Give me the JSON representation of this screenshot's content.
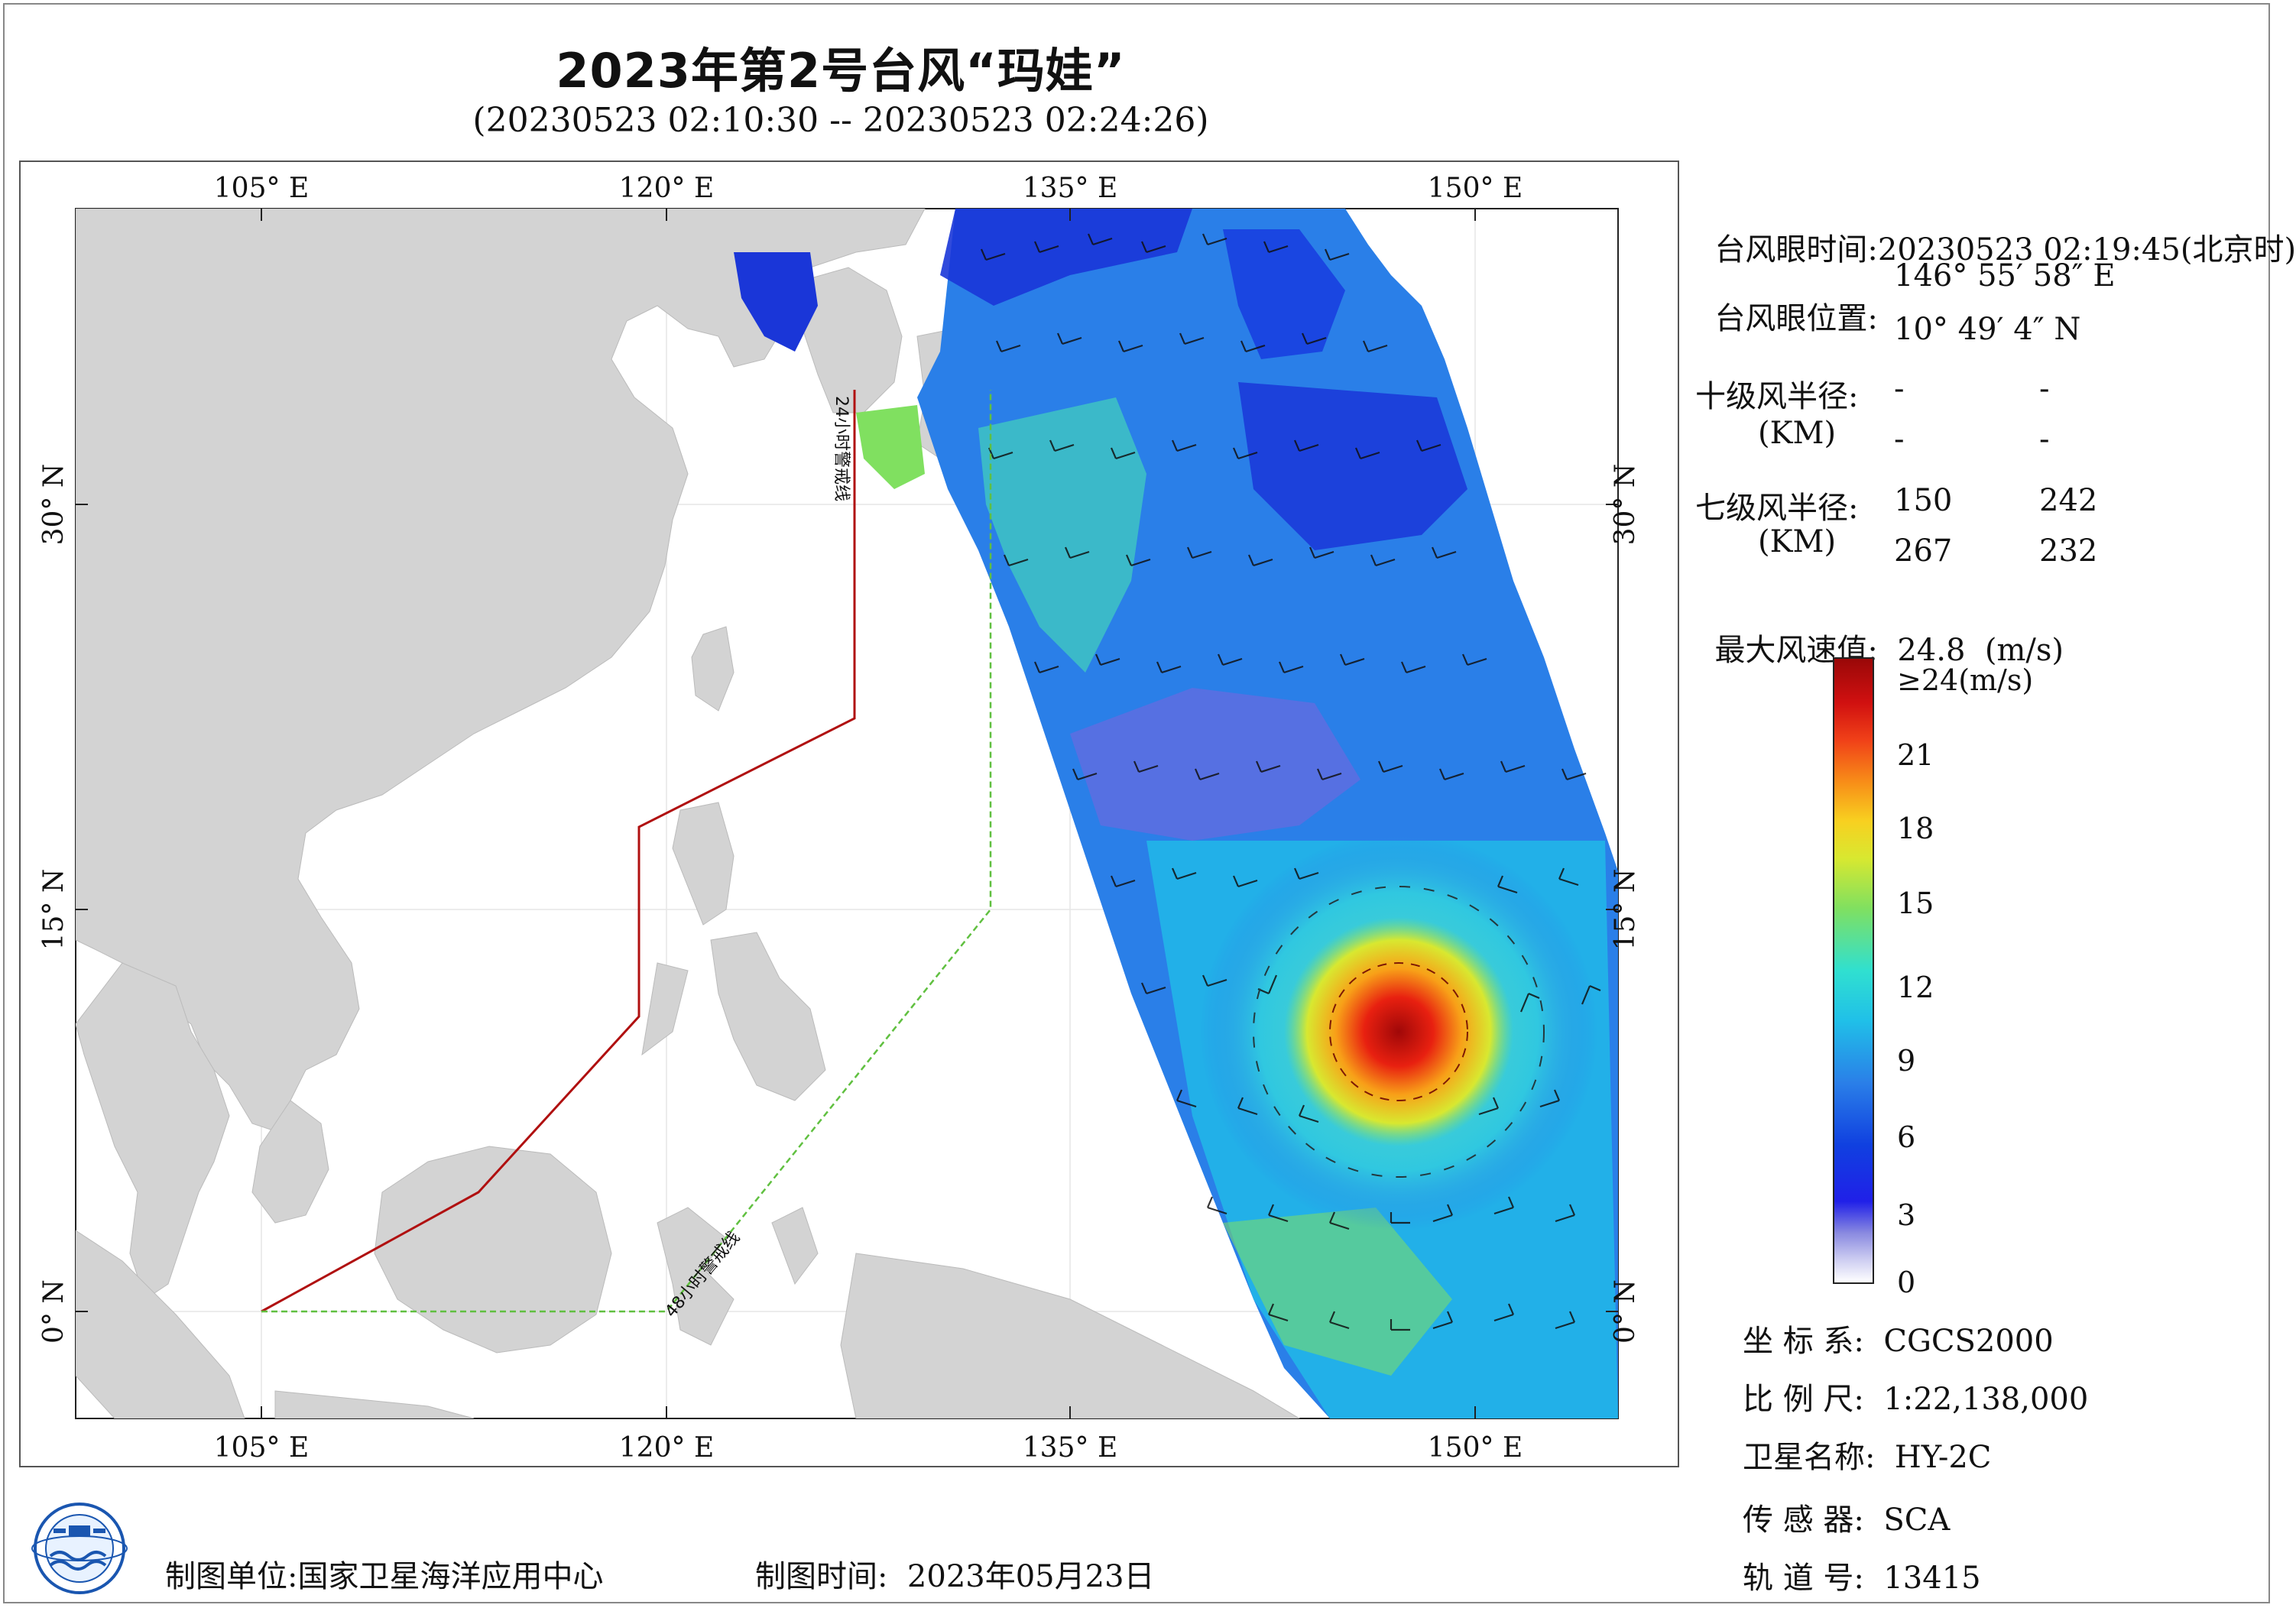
{
  "title": "2023年第2号台风“玛娃”",
  "subtitle": "(20230523 02:10:30 -- 20230523 02:24:26)",
  "map": {
    "lon_ticks": [
      "105° E",
      "120° E",
      "135° E",
      "150° E"
    ],
    "lat_ticks": [
      "30° N",
      "15° N",
      "0° N"
    ],
    "warning_24h_label": "24小时警戒线",
    "warning_48h_label": "48小时警戒线",
    "colors": {
      "land": "#d3d3d3",
      "sea": "#ffffff",
      "warning_24h": "#b01010",
      "warning_48h": "#60c040"
    }
  },
  "info": {
    "eye_time_label": "台风眼时间:",
    "eye_time_value": "20230523 02:19:45(北京时)",
    "eye_pos_label": "台风眼位置:",
    "eye_lon": "146° 55′ 58″ E",
    "eye_lat": "10° 49′ 4″ N",
    "r10_label": "十级风半径:",
    "r10_unit": "(KM)",
    "r10_values": [
      "-",
      "-",
      "-",
      "-"
    ],
    "r7_label": "七级风半径:",
    "r7_unit": "(KM)",
    "r7_values": [
      "150",
      "242",
      "267",
      "232"
    ],
    "max_wind_label": "最大风速值:",
    "max_wind_value": "24.8",
    "max_wind_unit": "(m/s)"
  },
  "colorbar": {
    "labels": [
      "≥24(m/s)",
      "21",
      "18",
      "15",
      "12",
      "9",
      "6",
      "3",
      "0"
    ]
  },
  "meta": {
    "crs_label": "坐 标 系:",
    "crs_value": "CGCS2000",
    "scale_label": "比 例 尺:",
    "scale_value": "1:22,138,000",
    "satellite_label": "卫星名称:",
    "satellite_value": "HY-2C",
    "sensor_label": "传 感 器:",
    "sensor_value": "SCA",
    "orbit_label": "轨 道 号:",
    "orbit_value": "13415"
  },
  "footer": {
    "producer_label": "制图单位:",
    "producer_value": "国家卫星海洋应用中心",
    "date_label": "制图时间:",
    "date_value": "2023年05月23日"
  },
  "logo_icon": "ocean-satellite-logo-icon"
}
